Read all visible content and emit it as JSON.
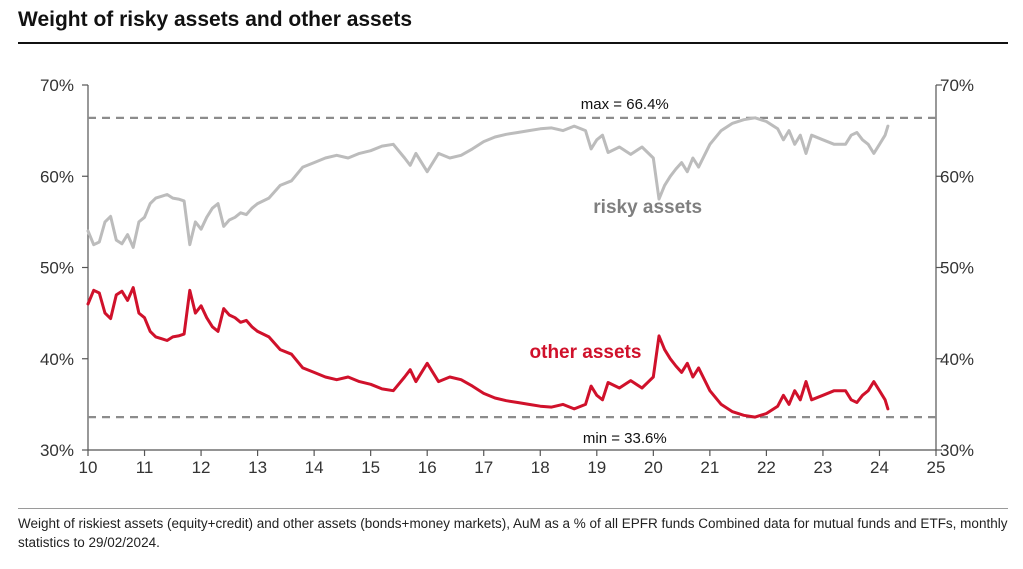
{
  "title": "Weight of risky assets and other assets",
  "caption": "Weight of riskiest assets (equity+credit) and other assets (bonds+money markets), AuM as a % of all EPFR funds Combined data for mutual funds and ETFs, monthly statistics to 29/02/2024.",
  "chart_data": {
    "type": "line",
    "title": "Weight of risky assets and other assets",
    "xlabel": "",
    "ylabel": "",
    "xlim": [
      10,
      25
    ],
    "ylim": [
      30,
      70
    ],
    "x_ticks": [
      "10",
      "11",
      "12",
      "13",
      "14",
      "15",
      "16",
      "17",
      "18",
      "19",
      "20",
      "21",
      "22",
      "23",
      "24",
      "25"
    ],
    "y_ticks": [
      "30%",
      "40%",
      "50%",
      "60%",
      "70%"
    ],
    "y_axis_right": true,
    "grid": false,
    "reference_lines": [
      {
        "name": "max",
        "value": 66.4,
        "label": "max = 66.4%",
        "style": "dashed",
        "color": "#8c8c8c"
      },
      {
        "name": "min",
        "value": 33.6,
        "label": "min = 33.6%",
        "style": "dashed",
        "color": "#8c8c8c"
      }
    ],
    "series": [
      {
        "name": "risky assets",
        "label": "risky assets",
        "color": "#bcbcbc",
        "label_color": "#7f7f7f",
        "x": [
          10.0,
          10.1,
          10.2,
          10.3,
          10.4,
          10.5,
          10.6,
          10.7,
          10.8,
          10.9,
          11.0,
          11.1,
          11.2,
          11.3,
          11.4,
          11.5,
          11.6,
          11.7,
          11.8,
          11.9,
          12.0,
          12.1,
          12.2,
          12.3,
          12.4,
          12.5,
          12.6,
          12.7,
          12.8,
          12.9,
          13.0,
          13.2,
          13.4,
          13.6,
          13.8,
          14.0,
          14.2,
          14.4,
          14.6,
          14.8,
          15.0,
          15.2,
          15.4,
          15.6,
          15.7,
          15.8,
          16.0,
          16.2,
          16.4,
          16.6,
          16.8,
          17.0,
          17.2,
          17.4,
          17.6,
          17.8,
          18.0,
          18.2,
          18.4,
          18.6,
          18.8,
          18.9,
          19.0,
          19.1,
          19.2,
          19.4,
          19.6,
          19.8,
          20.0,
          20.1,
          20.2,
          20.3,
          20.4,
          20.5,
          20.6,
          20.7,
          20.8,
          21.0,
          21.2,
          21.4,
          21.6,
          21.8,
          22.0,
          22.2,
          22.3,
          22.4,
          22.5,
          22.6,
          22.7,
          22.8,
          23.0,
          23.2,
          23.4,
          23.5,
          23.6,
          23.7,
          23.8,
          23.9,
          24.0,
          24.1,
          24.15
        ],
        "values": [
          54.0,
          52.5,
          52.8,
          55.0,
          55.6,
          53.0,
          52.6,
          53.6,
          52.2,
          55.0,
          55.5,
          57.0,
          57.6,
          57.8,
          58.0,
          57.6,
          57.5,
          57.3,
          52.5,
          55.0,
          54.2,
          55.5,
          56.5,
          57.0,
          54.5,
          55.2,
          55.5,
          56.0,
          55.8,
          56.5,
          57.0,
          57.6,
          59.0,
          59.5,
          61.0,
          61.5,
          62.0,
          62.3,
          62.0,
          62.5,
          62.8,
          63.3,
          63.5,
          62.0,
          61.2,
          62.5,
          60.5,
          62.5,
          62.0,
          62.3,
          63.0,
          63.8,
          64.3,
          64.6,
          64.8,
          65.0,
          65.2,
          65.3,
          65.0,
          65.5,
          65.0,
          63.0,
          64.0,
          64.5,
          62.6,
          63.2,
          62.4,
          63.2,
          62.0,
          57.5,
          59.0,
          60.0,
          60.8,
          61.5,
          60.5,
          62.0,
          61.0,
          63.5,
          65.0,
          65.8,
          66.2,
          66.4,
          66.0,
          65.2,
          64.0,
          65.0,
          63.5,
          64.5,
          62.5,
          64.5,
          64.0,
          63.5,
          63.5,
          64.5,
          64.8,
          64.0,
          63.5,
          62.5,
          63.5,
          64.5,
          65.5
        ]
      },
      {
        "name": "other assets",
        "label": "other assets",
        "color": "#d0112b",
        "label_color": "#d0112b",
        "x": [
          10.0,
          10.1,
          10.2,
          10.3,
          10.4,
          10.5,
          10.6,
          10.7,
          10.8,
          10.9,
          11.0,
          11.1,
          11.2,
          11.3,
          11.4,
          11.5,
          11.6,
          11.7,
          11.8,
          11.9,
          12.0,
          12.1,
          12.2,
          12.3,
          12.4,
          12.5,
          12.6,
          12.7,
          12.8,
          12.9,
          13.0,
          13.2,
          13.4,
          13.6,
          13.8,
          14.0,
          14.2,
          14.4,
          14.6,
          14.8,
          15.0,
          15.2,
          15.4,
          15.6,
          15.7,
          15.8,
          16.0,
          16.2,
          16.4,
          16.6,
          16.8,
          17.0,
          17.2,
          17.4,
          17.6,
          17.8,
          18.0,
          18.2,
          18.4,
          18.6,
          18.8,
          18.9,
          19.0,
          19.1,
          19.2,
          19.4,
          19.6,
          19.8,
          20.0,
          20.1,
          20.2,
          20.3,
          20.4,
          20.5,
          20.6,
          20.7,
          20.8,
          21.0,
          21.2,
          21.4,
          21.6,
          21.8,
          22.0,
          22.2,
          22.3,
          22.4,
          22.5,
          22.6,
          22.7,
          22.8,
          23.0,
          23.2,
          23.4,
          23.5,
          23.6,
          23.7,
          23.8,
          23.9,
          24.0,
          24.1,
          24.15
        ],
        "values": [
          46.0,
          47.5,
          47.2,
          45.0,
          44.4,
          47.0,
          47.4,
          46.4,
          47.8,
          45.0,
          44.5,
          43.0,
          42.4,
          42.2,
          42.0,
          42.4,
          42.5,
          42.7,
          47.5,
          45.0,
          45.8,
          44.5,
          43.5,
          43.0,
          45.5,
          44.8,
          44.5,
          44.0,
          44.2,
          43.5,
          43.0,
          42.4,
          41.0,
          40.5,
          39.0,
          38.5,
          38.0,
          37.7,
          38.0,
          37.5,
          37.2,
          36.7,
          36.5,
          38.0,
          38.8,
          37.5,
          39.5,
          37.5,
          38.0,
          37.7,
          37.0,
          36.2,
          35.7,
          35.4,
          35.2,
          35.0,
          34.8,
          34.7,
          35.0,
          34.5,
          35.0,
          37.0,
          36.0,
          35.5,
          37.4,
          36.8,
          37.6,
          36.8,
          38.0,
          42.5,
          41.0,
          40.0,
          39.2,
          38.5,
          39.5,
          38.0,
          39.0,
          36.5,
          35.0,
          34.2,
          33.8,
          33.6,
          34.0,
          34.8,
          36.0,
          35.0,
          36.5,
          35.5,
          37.5,
          35.5,
          36.0,
          36.5,
          36.5,
          35.5,
          35.2,
          36.0,
          36.5,
          37.5,
          36.5,
          35.5,
          34.5
        ]
      }
    ]
  }
}
